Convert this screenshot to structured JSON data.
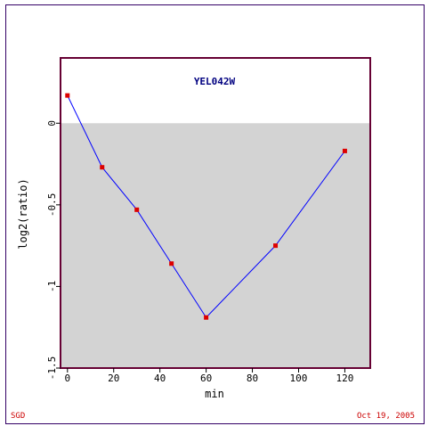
{
  "chart_data": {
    "type": "line",
    "title": "YEL042W",
    "xlabel": "min",
    "ylabel": "log2(ratio)",
    "x": [
      0,
      15,
      30,
      45,
      60,
      90,
      120
    ],
    "series": [
      {
        "values": [
          0.17,
          -0.27,
          -0.53,
          -0.86,
          -1.19,
          -0.75,
          -0.17
        ]
      }
    ],
    "xlim": [
      -3,
      131
    ],
    "ylim": [
      -1.5,
      0.4
    ],
    "xticks": [
      0,
      20,
      40,
      60,
      80,
      100,
      120
    ],
    "xtick_labels": [
      "0",
      "20",
      "40",
      "60",
      "80",
      "100",
      "120"
    ],
    "yticks": [
      0,
      -0.5,
      -1,
      -1.5
    ],
    "ytick_labels": [
      "0",
      "-0.5",
      "-1",
      "-1.5"
    ],
    "shaded_below": 0,
    "colors": {
      "line": "#0000ff",
      "marker": "#dd0000",
      "plot_border": "#660033",
      "outer_border": "#330066",
      "shade": "#d3d3d3",
      "title": "#000080",
      "footer": "#cc0000"
    }
  },
  "footer": {
    "left": "SGD",
    "right": "Oct 19, 2005"
  }
}
